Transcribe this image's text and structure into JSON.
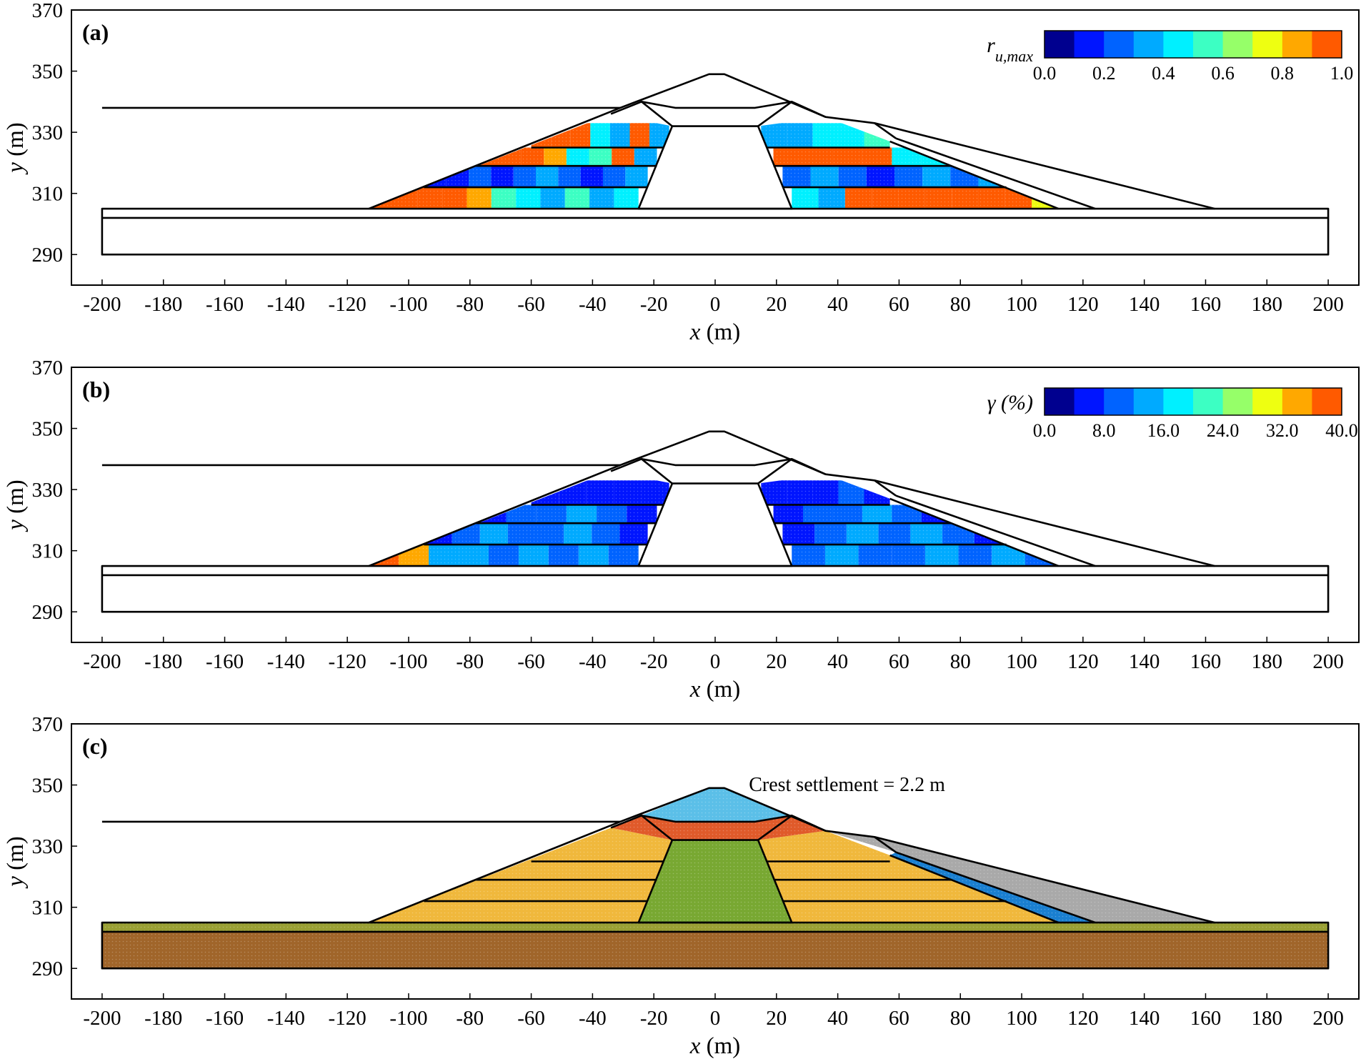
{
  "colors": {
    "ru_gamma_scale": [
      "#00008f",
      "#0015ff",
      "#0063ff",
      "#00aaff",
      "#00f0ff",
      "#3cffc3",
      "#96ff69",
      "#eeff11",
      "#ffa800",
      "#ff5a00"
    ],
    "crest_zone": "#5bbfe8",
    "filter_zone": "#e05a2a",
    "shell": "#f0b83c",
    "core": "#78a832",
    "drain": "#1a7fd0",
    "downstream_fill": "#a9a9a9",
    "top_layer": "#9aa034",
    "foundation": "#a0652a"
  },
  "chart_data": [
    {
      "type": "heatmap",
      "panel_label": "(a)",
      "xlabel": "x (m)",
      "ylabel": "y (m)",
      "xlim": [
        -210,
        210
      ],
      "ylim": [
        280,
        370
      ],
      "xticks": [
        "-200",
        "-180",
        "-160",
        "-140",
        "-120",
        "-100",
        "-80",
        "-60",
        "-40",
        "-20",
        "0",
        "20",
        "40",
        "60",
        "80",
        "100",
        "120",
        "140",
        "160",
        "180",
        "200"
      ],
      "yticks": [
        "290",
        "310",
        "330",
        "350",
        "370"
      ],
      "colorbar": {
        "title_main": "r",
        "title_sub": "u,max",
        "range": [
          0,
          1
        ],
        "tick_labels": [
          "0.0",
          "0.2",
          "0.4",
          "0.6",
          "0.8",
          "1.0"
        ]
      },
      "regions": [
        {
          "name": "upstream-layer-1",
          "y_range": [
            305,
            312
          ],
          "x_range": [
            -113,
            -25
          ],
          "colors_upstream_to_core": [
            9,
            9,
            9,
            9,
            8,
            5,
            4,
            3,
            5,
            3,
            4
          ]
        },
        {
          "name": "upstream-layer-2",
          "y_range": [
            312,
            319
          ],
          "x_range": [
            -95,
            -22
          ],
          "colors_upstream_to_core": [
            1,
            1,
            2,
            1,
            2,
            3,
            2,
            1,
            2,
            3
          ]
        },
        {
          "name": "upstream-layer-3",
          "y_range": [
            319,
            325
          ],
          "x_range": [
            -78,
            -19
          ],
          "colors_upstream_to_core": [
            9,
            9,
            9,
            8,
            4,
            5,
            9,
            3
          ]
        },
        {
          "name": "upstream-layer-4",
          "y_range": [
            325,
            333
          ],
          "x_range": [
            -60,
            -15
          ],
          "colors_upstream_to_core": [
            9,
            9,
            9,
            4,
            3,
            9,
            3
          ]
        },
        {
          "name": "downstream-layer-1",
          "y_range": [
            305,
            312
          ],
          "x_range": [
            25,
            112
          ],
          "colors_core_to_downstream": [
            4,
            3,
            9,
            9,
            9,
            9,
            9,
            9,
            9,
            7
          ]
        },
        {
          "name": "downstream-layer-2",
          "y_range": [
            312,
            319
          ],
          "x_range": [
            22,
            95
          ],
          "colors_core_to_downstream": [
            2,
            3,
            2,
            1,
            2,
            3,
            2,
            3
          ]
        },
        {
          "name": "downstream-layer-3",
          "y_range": [
            319,
            325
          ],
          "x_range": [
            19,
            77
          ],
          "colors_core_to_downstream": [
            9,
            9,
            9,
            9,
            4,
            4
          ]
        },
        {
          "name": "downstream-layer-4",
          "y_range": [
            325,
            333
          ],
          "x_range": [
            15,
            57
          ],
          "colors_core_to_downstream": [
            3,
            3,
            4,
            4,
            5
          ]
        }
      ]
    },
    {
      "type": "heatmap",
      "panel_label": "(b)",
      "xlabel": "x (m)",
      "ylabel": "y (m)",
      "xlim": [
        -210,
        210
      ],
      "ylim": [
        280,
        370
      ],
      "xticks": [
        "-200",
        "-180",
        "-160",
        "-140",
        "-120",
        "-100",
        "-80",
        "-60",
        "-40",
        "-20",
        "0",
        "20",
        "40",
        "60",
        "80",
        "100",
        "120",
        "140",
        "160",
        "180",
        "200"
      ],
      "yticks": [
        "290",
        "310",
        "330",
        "350",
        "370"
      ],
      "colorbar": {
        "title_main": "γ (%)",
        "range": [
          0,
          40
        ],
        "tick_labels": [
          "0.0",
          "8.0",
          "16.0",
          "24.0",
          "32.0",
          "40.0"
        ]
      },
      "regions": [
        {
          "name": "upstream-layer-1",
          "y_range": [
            305,
            312
          ],
          "x_range": [
            -113,
            -25
          ],
          "colors_upstream_to_core": [
            9,
            8,
            3,
            3,
            2,
            3,
            2,
            3,
            2
          ]
        },
        {
          "name": "upstream-layer-2",
          "y_range": [
            312,
            319
          ],
          "x_range": [
            -95,
            -22
          ],
          "colors_upstream_to_core": [
            1,
            2,
            3,
            2,
            2,
            3,
            2,
            1
          ]
        },
        {
          "name": "upstream-layer-3",
          "y_range": [
            319,
            325
          ],
          "x_range": [
            -78,
            -19
          ],
          "colors_upstream_to_core": [
            1,
            2,
            2,
            3,
            2,
            1
          ]
        },
        {
          "name": "upstream-layer-4",
          "y_range": [
            325,
            333
          ],
          "x_range": [
            -60,
            -15
          ],
          "colors_upstream_to_core": [
            1,
            1,
            1,
            1,
            1
          ]
        },
        {
          "name": "downstream-layer-1",
          "y_range": [
            305,
            312
          ],
          "x_range": [
            25,
            112
          ],
          "colors_core_to_downstream": [
            2,
            3,
            2,
            2,
            3,
            2,
            3,
            2
          ]
        },
        {
          "name": "downstream-layer-2",
          "y_range": [
            312,
            319
          ],
          "x_range": [
            22,
            95
          ],
          "colors_core_to_downstream": [
            1,
            2,
            3,
            2,
            3,
            2,
            1
          ]
        },
        {
          "name": "downstream-layer-3",
          "y_range": [
            319,
            325
          ],
          "x_range": [
            19,
            77
          ],
          "colors_core_to_downstream": [
            1,
            2,
            2,
            3,
            2,
            1
          ]
        },
        {
          "name": "downstream-layer-4",
          "y_range": [
            325,
            333
          ],
          "x_range": [
            15,
            57
          ],
          "colors_core_to_downstream": [
            1,
            1,
            1,
            2,
            1
          ]
        }
      ]
    },
    {
      "type": "diagram",
      "panel_label": "(c)",
      "xlabel": "x (m)",
      "ylabel": "y (m)",
      "xlim": [
        -210,
        210
      ],
      "ylim": [
        280,
        370
      ],
      "xticks": [
        "-200",
        "-180",
        "-160",
        "-140",
        "-120",
        "-100",
        "-80",
        "-60",
        "-40",
        "-20",
        "0",
        "20",
        "40",
        "60",
        "80",
        "100",
        "120",
        "140",
        "160",
        "180",
        "200"
      ],
      "yticks": [
        "290",
        "310",
        "330",
        "350",
        "370"
      ],
      "annotation": "Crest settlement = 2.2 m",
      "annotation_at": [
        11,
        348
      ]
    }
  ],
  "geometry": {
    "foundation": [
      [
        -200,
        290
      ],
      [
        200,
        290
      ],
      [
        200,
        305
      ],
      [
        -200,
        305
      ]
    ],
    "foundation_interface_y": 302,
    "water_line": [
      [
        -200,
        338
      ],
      [
        -31,
        338
      ]
    ],
    "dam_outline": [
      [
        -113,
        305
      ],
      [
        -31,
        338
      ],
      [
        -2,
        349
      ],
      [
        3,
        349
      ],
      [
        36,
        335
      ],
      [
        52,
        333
      ],
      [
        163,
        305
      ]
    ],
    "core": [
      [
        -25,
        305
      ],
      [
        25,
        305
      ],
      [
        14,
        332
      ],
      [
        -14,
        332
      ]
    ],
    "transition_top": [
      [
        -31,
        338
      ],
      [
        -24,
        340
      ],
      [
        -14,
        332
      ],
      [
        14,
        332
      ],
      [
        25,
        340
      ],
      [
        36,
        335
      ],
      [
        -34,
        336
      ]
    ],
    "crest_zone": [
      [
        -24,
        340
      ],
      [
        -2,
        349
      ],
      [
        3,
        349
      ],
      [
        25,
        340
      ],
      [
        13,
        338
      ],
      [
        -13,
        338
      ]
    ],
    "filter_zone": [
      [
        -34,
        336
      ],
      [
        -24,
        340
      ],
      [
        -13,
        338
      ],
      [
        13,
        338
      ],
      [
        25,
        340
      ],
      [
        36,
        335
      ],
      [
        14,
        332
      ],
      [
        -14,
        332
      ]
    ],
    "shell_left": [
      [
        -113,
        305
      ],
      [
        -25,
        305
      ],
      [
        -14,
        332
      ],
      [
        -34,
        336
      ]
    ],
    "shell_right": [
      [
        25,
        305
      ],
      [
        112,
        305
      ],
      [
        57,
        327
      ],
      [
        36,
        335
      ],
      [
        14,
        332
      ]
    ],
    "drain": [
      [
        57,
        327
      ],
      [
        112,
        305
      ],
      [
        124,
        305
      ],
      [
        59,
        328
      ]
    ],
    "downstream_fill": [
      [
        59,
        328
      ],
      [
        124,
        305
      ],
      [
        163,
        305
      ],
      [
        52,
        333
      ],
      [
        36,
        335
      ]
    ],
    "berm_line_1": [
      [
        52,
        333
      ],
      [
        59,
        328
      ]
    ],
    "left_lifts": [
      [
        [
          -95,
          312
        ],
        [
          -22,
          312
        ]
      ],
      [
        [
          -78,
          319
        ],
        [
          -19,
          319
        ]
      ],
      [
        [
          -60,
          325
        ],
        [
          -17,
          325
        ]
      ]
    ],
    "right_lifts": [
      [
        [
          22,
          312
        ],
        [
          95,
          312
        ]
      ],
      [
        [
          19,
          319
        ],
        [
          77,
          319
        ]
      ],
      [
        [
          17,
          325
        ],
        [
          57,
          325
        ]
      ]
    ]
  }
}
